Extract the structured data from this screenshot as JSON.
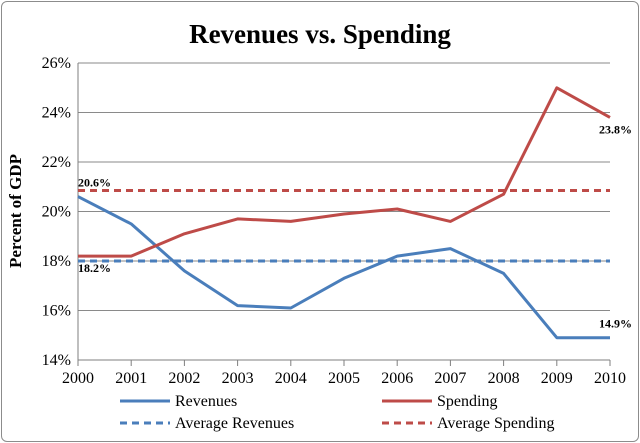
{
  "chart_data": {
    "type": "line",
    "title": "Revenues vs. Spending",
    "ylabel": "Percent of GDP",
    "xlabel": "",
    "x": [
      "2000",
      "2001",
      "2002",
      "2003",
      "2004",
      "2005",
      "2006",
      "2007",
      "2008",
      "2009",
      "2010"
    ],
    "ylim": [
      14,
      26
    ],
    "yticks": [
      "14%",
      "16%",
      "18%",
      "20%",
      "22%",
      "24%",
      "26%"
    ],
    "grid": "horizontal",
    "legend_position": "bottom",
    "series": [
      {
        "name": "Revenues",
        "color": "#4a7ebb",
        "style": "solid",
        "values": [
          20.6,
          19.5,
          17.6,
          16.2,
          16.1,
          17.3,
          18.2,
          18.5,
          17.5,
          14.9,
          14.9
        ]
      },
      {
        "name": "Spending",
        "color": "#be4b48",
        "style": "solid",
        "values": [
          18.2,
          18.2,
          19.1,
          19.7,
          19.6,
          19.9,
          20.1,
          19.6,
          20.7,
          25.0,
          23.8
        ]
      },
      {
        "name": "Average Revenues",
        "color": "#4a7ebb",
        "style": "dashed",
        "values": [
          18.0,
          18.0,
          18.0,
          18.0,
          18.0,
          18.0,
          18.0,
          18.0,
          18.0,
          18.0,
          18.0
        ]
      },
      {
        "name": "Average Spending",
        "color": "#be4b48",
        "style": "dashed",
        "values": [
          20.85,
          20.85,
          20.85,
          20.85,
          20.85,
          20.85,
          20.85,
          20.85,
          20.85,
          20.85,
          20.85
        ]
      }
    ],
    "annotations": [
      {
        "text": "20.6%",
        "series": "Revenues",
        "index": 0
      },
      {
        "text": "18.2%",
        "series": "Spending",
        "index": 0
      },
      {
        "text": "23.8%",
        "series": "Spending",
        "index": 10
      },
      {
        "text": "14.9%",
        "series": "Revenues",
        "index": 10
      }
    ]
  }
}
